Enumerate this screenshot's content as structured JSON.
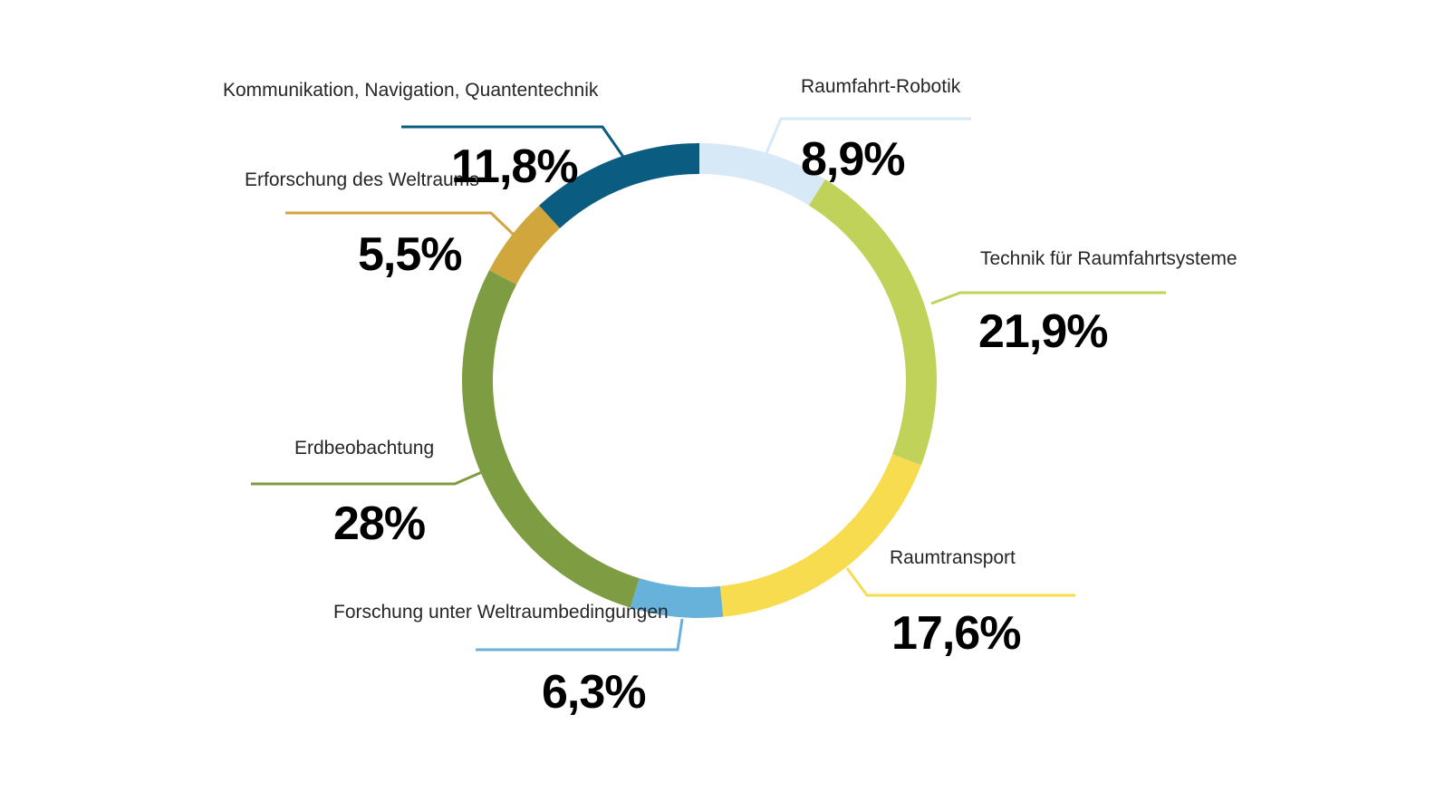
{
  "page": {
    "background_color": "#ffffff",
    "text_color": "#262626",
    "percent_text_color": "#000000"
  },
  "chart_data": {
    "type": "pie",
    "subtype": "donut",
    "title": "",
    "unit": "%",
    "start_angle_deg": 0,
    "direction": "clockwise",
    "total": 100,
    "segments": [
      {
        "label": "Raumfahrt-Robotik",
        "value": 8.9,
        "value_label": "8,9%",
        "color": "#d7e8f6"
      },
      {
        "label": "Technik für Raumfahrtsysteme",
        "value": 21.9,
        "value_label": "21,9%",
        "color": "#c0d25a"
      },
      {
        "label": "Raumtransport",
        "value": 17.6,
        "value_label": "17,6%",
        "color": "#f8dc4f"
      },
      {
        "label": "Forschung unter Weltraumbedingungen",
        "value": 6.3,
        "value_label": "6,3%",
        "color": "#66b2da"
      },
      {
        "label": "Erdbeobachtung",
        "value": 28,
        "value_label": "28%",
        "color": "#7e9d43"
      },
      {
        "label": "Erforschung des Weltraums",
        "value": 5.5,
        "value_label": "5,5%",
        "color": "#d0a63d"
      },
      {
        "label": "Kommunikation, Navigation, Quantentechnik",
        "value": 11.8,
        "value_label": "11,8%",
        "color": "#0a5c80"
      }
    ]
  }
}
